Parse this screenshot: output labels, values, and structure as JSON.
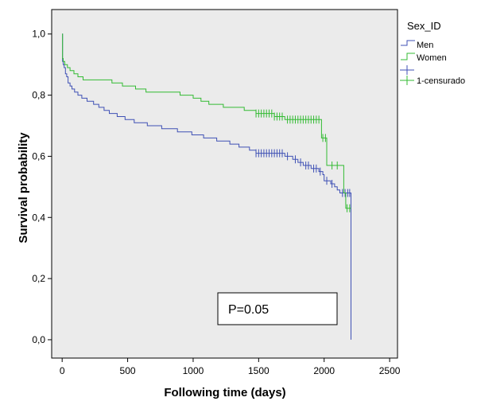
{
  "chart_data": {
    "type": "line",
    "subtype": "kaplan-meier step",
    "xlabel": "Following time (days)",
    "ylabel": "Survival probability",
    "xlim": [
      -80,
      2560
    ],
    "ylim": [
      -0.06,
      1.08
    ],
    "xticks": [
      {
        "value": 0,
        "label": "0"
      },
      {
        "value": 500,
        "label": "500"
      },
      {
        "value": 1000,
        "label": "1000"
      },
      {
        "value": 1500,
        "label": "1500"
      },
      {
        "value": 2000,
        "label": "2000"
      },
      {
        "value": 2500,
        "label": "2500"
      }
    ],
    "yticks": [
      {
        "value": 0.0,
        "label": "0,0"
      },
      {
        "value": 0.2,
        "label": "0,2"
      },
      {
        "value": 0.4,
        "label": "0,4"
      },
      {
        "value": 0.6,
        "label": "0,6"
      },
      {
        "value": 0.8,
        "label": "0,8"
      },
      {
        "value": 1.0,
        "label": "1,0"
      }
    ],
    "grid": false,
    "background": "#ebebeb",
    "legend": {
      "title": "Sex_ID",
      "placement": "right",
      "entries": [
        "Men",
        "Women",
        "",
        "1-censurado"
      ]
    },
    "annotation": "P=0.05",
    "series": [
      {
        "name": "Men",
        "color": "#3f51b5",
        "points": [
          [
            0,
            1.0
          ],
          [
            3,
            0.91
          ],
          [
            8,
            0.9
          ],
          [
            15,
            0.89
          ],
          [
            25,
            0.87
          ],
          [
            35,
            0.86
          ],
          [
            45,
            0.84
          ],
          [
            60,
            0.83
          ],
          [
            75,
            0.82
          ],
          [
            95,
            0.81
          ],
          [
            120,
            0.8
          ],
          [
            150,
            0.79
          ],
          [
            190,
            0.78
          ],
          [
            240,
            0.77
          ],
          [
            280,
            0.76
          ],
          [
            320,
            0.75
          ],
          [
            360,
            0.74
          ],
          [
            420,
            0.73
          ],
          [
            480,
            0.72
          ],
          [
            550,
            0.71
          ],
          [
            650,
            0.7
          ],
          [
            760,
            0.69
          ],
          [
            880,
            0.68
          ],
          [
            990,
            0.67
          ],
          [
            1080,
            0.66
          ],
          [
            1180,
            0.65
          ],
          [
            1280,
            0.64
          ],
          [
            1350,
            0.63
          ],
          [
            1430,
            0.62
          ],
          [
            1480,
            0.61
          ],
          [
            1700,
            0.6
          ],
          [
            1760,
            0.59
          ],
          [
            1800,
            0.58
          ],
          [
            1840,
            0.57
          ],
          [
            1900,
            0.56
          ],
          [
            1960,
            0.55
          ],
          [
            1990,
            0.54
          ],
          [
            2000,
            0.52
          ],
          [
            2050,
            0.51
          ],
          [
            2080,
            0.5
          ],
          [
            2100,
            0.49
          ],
          [
            2120,
            0.48
          ],
          [
            2205,
            0.48
          ],
          [
            2205,
            0.0
          ]
        ],
        "censored": [
          [
            1480,
            0.61
          ],
          [
            1500,
            0.61
          ],
          [
            1520,
            0.61
          ],
          [
            1540,
            0.61
          ],
          [
            1560,
            0.61
          ],
          [
            1580,
            0.61
          ],
          [
            1600,
            0.61
          ],
          [
            1620,
            0.61
          ],
          [
            1640,
            0.61
          ],
          [
            1660,
            0.61
          ],
          [
            1680,
            0.61
          ],
          [
            1720,
            0.6
          ],
          [
            1780,
            0.59
          ],
          [
            1820,
            0.58
          ],
          [
            1860,
            0.57
          ],
          [
            1880,
            0.57
          ],
          [
            1920,
            0.56
          ],
          [
            1940,
            0.56
          ],
          [
            1970,
            0.55
          ],
          [
            2020,
            0.52
          ],
          [
            2060,
            0.51
          ],
          [
            2140,
            0.48
          ],
          [
            2160,
            0.48
          ],
          [
            2180,
            0.48
          ],
          [
            2195,
            0.48
          ]
        ]
      },
      {
        "name": "Women",
        "color": "#33bb33",
        "points": [
          [
            0,
            1.0
          ],
          [
            3,
            0.92
          ],
          [
            8,
            0.91
          ],
          [
            20,
            0.9
          ],
          [
            40,
            0.89
          ],
          [
            60,
            0.88
          ],
          [
            90,
            0.87
          ],
          [
            120,
            0.86
          ],
          [
            160,
            0.85
          ],
          [
            380,
            0.84
          ],
          [
            460,
            0.83
          ],
          [
            560,
            0.82
          ],
          [
            640,
            0.81
          ],
          [
            900,
            0.8
          ],
          [
            1000,
            0.79
          ],
          [
            1060,
            0.78
          ],
          [
            1120,
            0.77
          ],
          [
            1230,
            0.76
          ],
          [
            1390,
            0.75
          ],
          [
            1480,
            0.74
          ],
          [
            1620,
            0.73
          ],
          [
            1700,
            0.72
          ],
          [
            1980,
            0.72
          ],
          [
            1980,
            0.66
          ],
          [
            2020,
            0.66
          ],
          [
            2020,
            0.57
          ],
          [
            2150,
            0.57
          ],
          [
            2150,
            0.48
          ],
          [
            2165,
            0.48
          ],
          [
            2165,
            0.43
          ],
          [
            2205,
            0.43
          ]
        ],
        "censored": [
          [
            1480,
            0.74
          ],
          [
            1500,
            0.74
          ],
          [
            1520,
            0.74
          ],
          [
            1540,
            0.74
          ],
          [
            1560,
            0.74
          ],
          [
            1580,
            0.74
          ],
          [
            1600,
            0.74
          ],
          [
            1620,
            0.73
          ],
          [
            1640,
            0.73
          ],
          [
            1660,
            0.73
          ],
          [
            1680,
            0.73
          ],
          [
            1720,
            0.72
          ],
          [
            1740,
            0.72
          ],
          [
            1760,
            0.72
          ],
          [
            1780,
            0.72
          ],
          [
            1800,
            0.72
          ],
          [
            1820,
            0.72
          ],
          [
            1840,
            0.72
          ],
          [
            1860,
            0.72
          ],
          [
            1880,
            0.72
          ],
          [
            1900,
            0.72
          ],
          [
            1920,
            0.72
          ],
          [
            1940,
            0.72
          ],
          [
            1960,
            0.72
          ],
          [
            1990,
            0.66
          ],
          [
            2010,
            0.66
          ],
          [
            2060,
            0.57
          ],
          [
            2100,
            0.57
          ],
          [
            2175,
            0.43
          ],
          [
            2195,
            0.43
          ]
        ]
      }
    ]
  }
}
